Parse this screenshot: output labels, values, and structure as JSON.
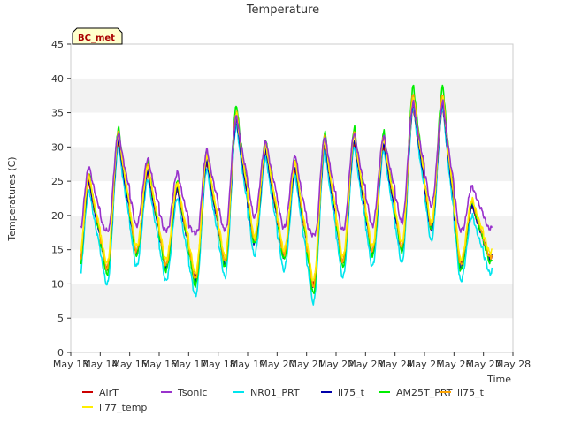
{
  "chart_data": {
    "type": "line",
    "title": "Temperature",
    "site_label": "BC_met",
    "xlabel": "Time",
    "ylabel": "Temperatures (C)",
    "ylim": [
      0,
      45
    ],
    "yticks": [
      0,
      5,
      10,
      15,
      20,
      25,
      30,
      35,
      40,
      45
    ],
    "xlim": [
      13,
      28
    ],
    "xticks": [
      13,
      14,
      15,
      16,
      17,
      18,
      19,
      20,
      21,
      22,
      23,
      24,
      25,
      26,
      27,
      28
    ],
    "xtick_labels": [
      "May 13",
      "May 14",
      "May 15",
      "May 16",
      "May 17",
      "May 18",
      "May 19",
      "May 20",
      "May 21",
      "May 22",
      "May 23",
      "May 24",
      "May 25",
      "May 26",
      "May 27",
      "May 28"
    ],
    "grid": "horizontal bands",
    "legend_position": "bottom",
    "daily": [
      {
        "day": "May 13",
        "min": 10.5,
        "max": 25.0
      },
      {
        "day": "May 14",
        "min": 12.0,
        "max": 31.0
      },
      {
        "day": "May 15",
        "min": 14.5,
        "max": 26.5
      },
      {
        "day": "May 16",
        "min": 12.5,
        "max": 24.0
      },
      {
        "day": "May 17",
        "min": 10.5,
        "max": 28.0
      },
      {
        "day": "May 18",
        "min": 13.0,
        "max": 34.0
      },
      {
        "day": "May 19",
        "min": 16.0,
        "max": 29.5
      },
      {
        "day": "May 20",
        "min": 14.0,
        "max": 27.0
      },
      {
        "day": "May 21",
        "min": 9.5,
        "max": 30.5
      },
      {
        "day": "May 22",
        "min": 13.0,
        "max": 31.0
      },
      {
        "day": "May 23",
        "min": 14.5,
        "max": 30.5
      },
      {
        "day": "May 24",
        "min": 15.0,
        "max": 36.5
      },
      {
        "day": "May 25",
        "min": 18.0,
        "max": 36.5
      },
      {
        "day": "May 26",
        "min": 12.5,
        "max": 21.5
      },
      {
        "day": "May 27",
        "min": 13.5,
        "max": null
      }
    ],
    "series": [
      {
        "name": "AirT",
        "color": "#cc0000",
        "offset": 0.0,
        "amp": 0.95
      },
      {
        "name": "NR01_PRT",
        "color": "#00e5ee",
        "offset": -1.6,
        "amp": 1.06
      },
      {
        "name": "li75_t",
        "color": "#0000aa",
        "offset": 0.0,
        "amp": 1.0
      },
      {
        "name": "AM25T_PRT",
        "color": "#00ee00",
        "offset": 0.4,
        "amp": 1.12
      },
      {
        "name": "li75_t",
        "color": "#ffa500",
        "offset": 0.6,
        "amp": 1.04
      },
      {
        "name": "li77_temp",
        "color": "#ffee00",
        "offset": 0.9,
        "amp": 0.98
      },
      {
        "name": "Tsonic",
        "color": "#9932cc",
        "offset": 3.0,
        "amp": 0.82
      }
    ]
  }
}
